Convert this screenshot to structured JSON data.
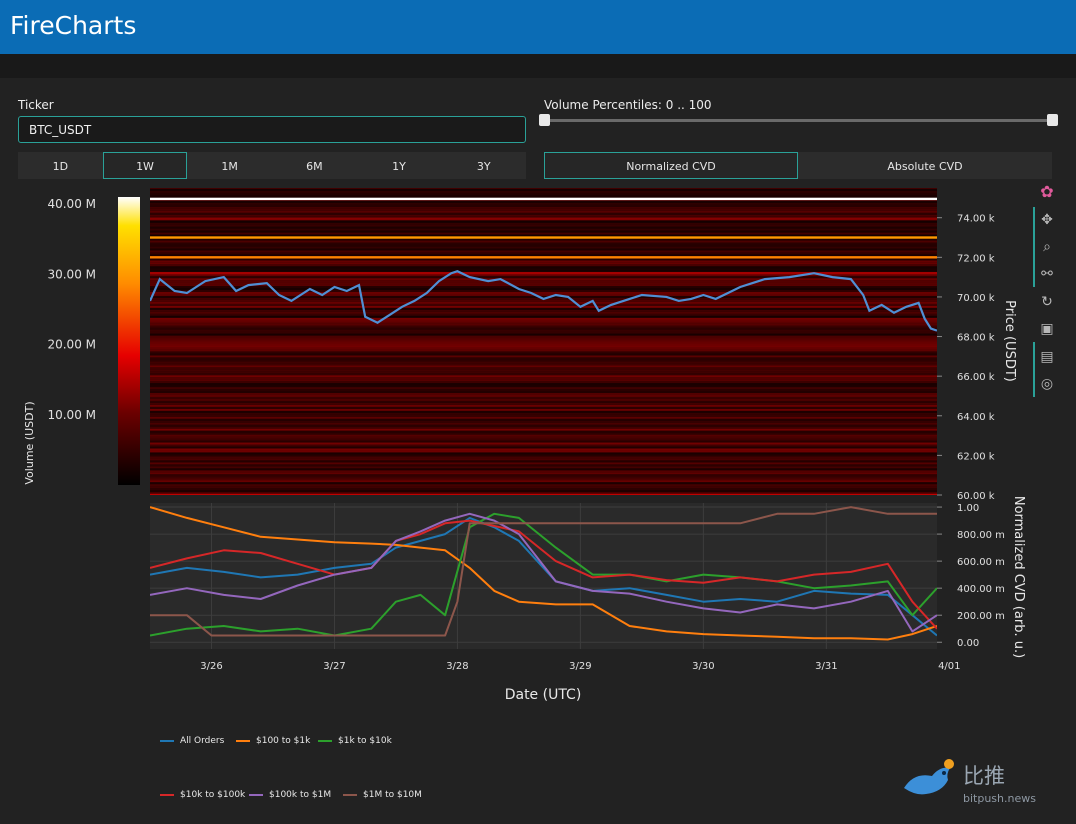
{
  "header": {
    "title": "FireCharts"
  },
  "controls": {
    "ticker_label": "Ticker",
    "ticker_value": "BTC_USDT",
    "volume_percentiles_label": "Volume Percentiles: 0 .. 100",
    "volume_percentiles_range": [
      0,
      100
    ],
    "timeframes": [
      "1D",
      "1W",
      "1M",
      "6M",
      "1Y",
      "3Y"
    ],
    "timeframe_selected": "1W",
    "cvd_modes": [
      "Normalized CVD",
      "Absolute CVD"
    ],
    "cvd_mode_selected": "Normalized CVD"
  },
  "modebar": {
    "icons": [
      "plotly-logo-icon",
      "pan-icon",
      "zoom-icon",
      "compare-icon",
      "reset-icon",
      "save-icon",
      "spike-icon",
      "crosshair-icon"
    ]
  },
  "colors": {
    "accent": "#2aa198",
    "header": "#0b6cb5",
    "price_line": "#4f8fd4"
  },
  "chart_data": [
    {
      "type": "heatmap",
      "title": "",
      "ylabel": "Price (USDT)",
      "y_ticks": [
        "60.00 k",
        "62.00 k",
        "64.00 k",
        "66.00 k",
        "68.00 k",
        "70.00 k",
        "72.00 k",
        "74.00 k"
      ],
      "ylim": [
        60000,
        75500
      ],
      "colorbar": {
        "label": "Volume (USDT)",
        "ticks": [
          "10.00 M",
          "20.00 M",
          "30.00 M",
          "40.00 M"
        ],
        "range": [
          0,
          41000000
        ],
        "colorscale": "hot"
      },
      "bright_levels": [
        {
          "price": 74950,
          "volume": 41000000
        },
        {
          "price": 73000,
          "volume": 30000000
        },
        {
          "price": 72000,
          "volume": 28000000
        },
        {
          "price": 73950,
          "volume": 12000000
        },
        {
          "price": 71200,
          "volume": 14000000
        },
        {
          "price": 68800,
          "volume": 10000000
        },
        {
          "price": 60000,
          "volume": 16000000
        }
      ],
      "series": [
        {
          "name": "BTC_USDT price",
          "x": [
            0,
            0.08,
            0.2,
            0.3,
            0.45,
            0.6,
            0.7,
            0.8,
            0.95,
            1.05,
            1.15,
            1.3,
            1.4,
            1.5,
            1.6,
            1.7,
            1.75,
            1.85,
            1.95,
            2.05,
            2.15,
            2.25,
            2.35,
            2.45,
            2.5,
            2.6,
            2.75,
            2.85,
            3.0,
            3.1,
            3.2,
            3.3,
            3.4,
            3.5,
            3.6,
            3.65,
            3.75,
            3.9,
            4.0,
            4.2,
            4.3,
            4.4,
            4.5,
            4.6,
            4.7,
            4.8,
            4.9,
            5.0,
            5.2,
            5.4,
            5.55,
            5.7,
            5.8,
            5.85,
            5.95,
            6.05,
            6.15,
            6.25,
            6.3,
            6.35,
            6.4
          ],
          "y": [
            69800,
            70900,
            70300,
            70200,
            70800,
            71000,
            70300,
            70600,
            70700,
            70100,
            69800,
            70400,
            70100,
            70500,
            70300,
            70600,
            69000,
            68700,
            69100,
            69500,
            69800,
            70200,
            70800,
            71200,
            71300,
            71000,
            70800,
            70900,
            70400,
            70200,
            69900,
            70100,
            70000,
            69500,
            69800,
            69300,
            69600,
            69900,
            70100,
            70000,
            69800,
            69900,
            70100,
            69900,
            70200,
            70500,
            70700,
            70900,
            71000,
            71200,
            71000,
            70900,
            70100,
            69300,
            69600,
            69200,
            69500,
            69700,
            68900,
            68400,
            68300
          ]
        }
      ]
    },
    {
      "type": "line",
      "title": "",
      "xlabel": "Date (UTC)",
      "ylabel": "Normalized CVD (arb. u.)",
      "categories": [
        "3/26",
        "3/27",
        "3/28",
        "3/29",
        "3/30",
        "3/31",
        "4/01"
      ],
      "y_ticks": [
        "0.00",
        "200.00 m",
        "400.00 m",
        "600.00 m",
        "800.00 m",
        "1.00"
      ],
      "ylim": [
        -0.05,
        1.03
      ],
      "grid": true,
      "legend": "bottom",
      "series": [
        {
          "name": "All Orders",
          "color": "#1f77b4",
          "x": [
            0,
            0.3,
            0.6,
            0.9,
            1.2,
            1.5,
            1.8,
            2.0,
            2.2,
            2.4,
            2.6,
            2.8,
            3.0,
            3.3,
            3.6,
            3.9,
            4.2,
            4.5,
            4.8,
            5.1,
            5.4,
            5.7,
            6.0,
            6.2,
            6.4
          ],
          "y": [
            0.5,
            0.55,
            0.52,
            0.48,
            0.5,
            0.55,
            0.58,
            0.7,
            0.75,
            0.8,
            0.92,
            0.85,
            0.75,
            0.45,
            0.38,
            0.4,
            0.35,
            0.3,
            0.32,
            0.3,
            0.38,
            0.36,
            0.35,
            0.2,
            0.05
          ]
        },
        {
          "name": "$100 to $1k",
          "color": "#ff7f0e",
          "x": [
            0,
            0.3,
            0.6,
            0.9,
            1.2,
            1.5,
            1.8,
            2.0,
            2.2,
            2.4,
            2.6,
            2.8,
            3.0,
            3.3,
            3.6,
            3.9,
            4.2,
            4.5,
            4.8,
            5.1,
            5.4,
            5.7,
            6.0,
            6.2,
            6.4
          ],
          "y": [
            1.0,
            0.92,
            0.85,
            0.78,
            0.76,
            0.74,
            0.73,
            0.72,
            0.7,
            0.68,
            0.55,
            0.38,
            0.3,
            0.28,
            0.28,
            0.12,
            0.08,
            0.06,
            0.05,
            0.04,
            0.03,
            0.03,
            0.02,
            0.06,
            0.12
          ]
        },
        {
          "name": "$1k to $10k",
          "color": "#2ca02c",
          "x": [
            0,
            0.3,
            0.6,
            0.9,
            1.2,
            1.5,
            1.8,
            2.0,
            2.2,
            2.4,
            2.6,
            2.8,
            3.0,
            3.3,
            3.6,
            3.9,
            4.2,
            4.5,
            4.8,
            5.1,
            5.4,
            5.7,
            6.0,
            6.2,
            6.4
          ],
          "y": [
            0.05,
            0.1,
            0.12,
            0.08,
            0.1,
            0.05,
            0.1,
            0.3,
            0.35,
            0.2,
            0.85,
            0.95,
            0.92,
            0.7,
            0.5,
            0.5,
            0.45,
            0.5,
            0.48,
            0.45,
            0.4,
            0.42,
            0.45,
            0.2,
            0.4
          ]
        },
        {
          "name": "$10k to $100k",
          "color": "#d62728",
          "x": [
            0,
            0.3,
            0.6,
            0.9,
            1.2,
            1.5,
            1.8,
            2.0,
            2.2,
            2.4,
            2.6,
            2.8,
            3.0,
            3.3,
            3.6,
            3.9,
            4.2,
            4.5,
            4.8,
            5.1,
            5.4,
            5.7,
            6.0,
            6.2,
            6.4
          ],
          "y": [
            0.55,
            0.62,
            0.68,
            0.66,
            0.58,
            0.5,
            0.55,
            0.75,
            0.8,
            0.88,
            0.9,
            0.86,
            0.82,
            0.6,
            0.48,
            0.5,
            0.46,
            0.44,
            0.48,
            0.45,
            0.5,
            0.52,
            0.58,
            0.3,
            0.1
          ]
        },
        {
          "name": "$100k to $1M",
          "color": "#9467bd",
          "x": [
            0,
            0.3,
            0.6,
            0.9,
            1.2,
            1.5,
            1.8,
            2.0,
            2.2,
            2.4,
            2.6,
            2.8,
            3.0,
            3.3,
            3.6,
            3.9,
            4.2,
            4.5,
            4.8,
            5.1,
            5.4,
            5.7,
            6.0,
            6.2,
            6.4
          ],
          "y": [
            0.35,
            0.4,
            0.35,
            0.32,
            0.42,
            0.5,
            0.55,
            0.75,
            0.82,
            0.9,
            0.95,
            0.9,
            0.8,
            0.45,
            0.38,
            0.36,
            0.3,
            0.25,
            0.22,
            0.28,
            0.25,
            0.3,
            0.38,
            0.08,
            0.2
          ]
        },
        {
          "name": "$1M to $10M",
          "color": "#8c564b",
          "x": [
            0,
            0.3,
            0.5,
            0.9,
            1.2,
            1.5,
            1.8,
            2.0,
            2.2,
            2.4,
            2.5,
            2.6,
            2.8,
            3.0,
            3.3,
            3.6,
            3.9,
            4.2,
            4.5,
            4.8,
            5.1,
            5.4,
            5.7,
            6.0,
            6.2,
            6.4
          ],
          "y": [
            0.2,
            0.2,
            0.05,
            0.05,
            0.05,
            0.05,
            0.05,
            0.05,
            0.05,
            0.05,
            0.3,
            0.88,
            0.88,
            0.88,
            0.88,
            0.88,
            0.88,
            0.88,
            0.88,
            0.88,
            0.95,
            0.95,
            1.0,
            0.95,
            0.95,
            0.95
          ]
        }
      ]
    }
  ],
  "watermark": {
    "name": "比推",
    "url": "bitpush.news"
  }
}
